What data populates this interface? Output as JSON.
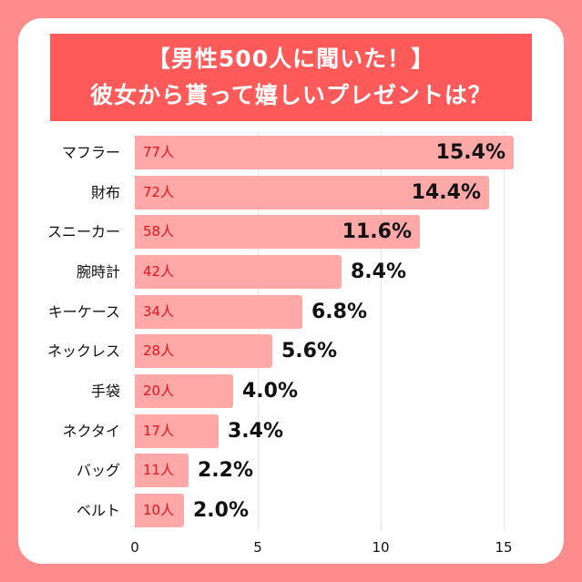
{
  "title": {
    "line1": "【男性500人に聞いた！】",
    "line2": "彼女から貰って嬉しいプレゼントは？"
  },
  "colors": {
    "background": "#ff8c8c",
    "title_bg": "#ff5a5a",
    "bar": "#ffa8a8",
    "count_text": "#e8141e",
    "text": "#111111"
  },
  "chart_data": {
    "type": "bar",
    "orientation": "horizontal",
    "title": "【男性500人に聞いた！】彼女から貰って嬉しいプレゼントは？",
    "categories": [
      "マフラー",
      "財布",
      "スニーカー",
      "腕時計",
      "キーケース",
      "ネックレス",
      "手袋",
      "ネクタイ",
      "バッグ",
      "ベルト"
    ],
    "values": [
      15.4,
      14.4,
      11.6,
      8.4,
      6.8,
      5.6,
      4.0,
      3.4,
      2.2,
      2.0
    ],
    "value_labels": [
      "15.4%",
      "14.4%",
      "11.6%",
      "8.4%",
      "6.8%",
      "5.6%",
      "4.0%",
      "3.4%",
      "2.2%",
      "2.0%"
    ],
    "counts": [
      77,
      72,
      58,
      42,
      34,
      28,
      20,
      17,
      11,
      10
    ],
    "count_labels": [
      "77人",
      "72人",
      "58人",
      "42人",
      "34人",
      "28人",
      "20人",
      "17人",
      "11人",
      "10人"
    ],
    "xlabel": "",
    "ylabel": "",
    "xlim": [
      0,
      16
    ],
    "xticks": [
      "0",
      "5",
      "10",
      "15"
    ],
    "xtick_values": [
      0,
      5,
      10,
      15
    ],
    "grid": true,
    "legend": null
  }
}
